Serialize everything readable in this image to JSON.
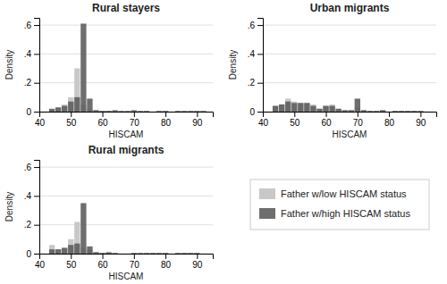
{
  "chart_data": [
    {
      "type": "bar",
      "title": "Rural stayers",
      "xlabel": "HISCAM",
      "ylabel": "Density",
      "x": [
        44,
        46,
        48,
        50,
        52,
        54,
        56,
        58,
        60,
        62,
        64,
        66,
        68,
        70,
        72,
        74,
        76,
        78,
        80,
        82,
        84,
        86,
        88,
        90,
        92
      ],
      "series": [
        {
          "name": "Father w/low HISCAM status",
          "color": "#c8c8c8",
          "values": [
            0.01,
            0.02,
            0.05,
            0.1,
            0.3,
            0.05,
            0.02,
            0.01,
            0.005,
            0.005,
            0.0,
            0.0,
            0.0,
            0.0,
            0.0,
            0.0,
            0.0,
            0.0,
            0.0,
            0.0,
            0.0,
            0.0,
            0.0,
            0.0,
            0.0
          ]
        },
        {
          "name": "Father w/high HISCAM status",
          "color": "#5a5a5a",
          "values": [
            0.02,
            0.03,
            0.04,
            0.07,
            0.1,
            0.61,
            0.09,
            0.01,
            0.005,
            0.005,
            0.01,
            0.005,
            0.005,
            0.01,
            0.005,
            0.005,
            0.0,
            0.005,
            0.005,
            0.0,
            0.005,
            0.005,
            0.005,
            0.005,
            0.005
          ]
        }
      ],
      "xlim": [
        40,
        95
      ],
      "xticks": [
        40,
        50,
        60,
        70,
        80,
        90
      ],
      "ylim": [
        0,
        0.65
      ],
      "yticks": [
        0,
        {
          "value": 0.2,
          "label": ".2"
        },
        {
          "value": 0.4,
          "label": ".4"
        },
        {
          "value": 0.6,
          "label": ".6"
        }
      ],
      "grid": true,
      "legend": "lower right"
    },
    {
      "type": "bar",
      "title": "Urban migrants",
      "xlabel": "HISCAM",
      "ylabel": "Density",
      "x": [
        44,
        46,
        48,
        50,
        52,
        54,
        56,
        58,
        60,
        62,
        64,
        66,
        68,
        70,
        72,
        74,
        76,
        78,
        80,
        82,
        84,
        86,
        88,
        90,
        92
      ],
      "series": [
        {
          "name": "Father w/low HISCAM status",
          "color": "#c8c8c8",
          "values": [
            0.04,
            0.05,
            0.09,
            0.07,
            0.06,
            0.06,
            0.05,
            0.02,
            0.04,
            0.05,
            0.02,
            0.01,
            0.01,
            0.03,
            0.01,
            0.005,
            0.005,
            0.01,
            0.0,
            0.005,
            0.005,
            0.005,
            0.005,
            0.0,
            0.0
          ]
        },
        {
          "name": "Father w/high HISCAM status",
          "color": "#5a5a5a",
          "values": [
            0.04,
            0.05,
            0.07,
            0.06,
            0.06,
            0.06,
            0.04,
            0.02,
            0.04,
            0.04,
            0.02,
            0.01,
            0.01,
            0.09,
            0.01,
            0.005,
            0.005,
            0.01,
            0.0,
            0.005,
            0.005,
            0.005,
            0.005,
            0.005,
            0.0
          ]
        }
      ],
      "xlim": [
        40,
        95
      ],
      "xticks": [
        40,
        50,
        60,
        70,
        80,
        90
      ],
      "ylim": [
        0,
        0.65
      ],
      "yticks": [
        0,
        {
          "value": 0.2,
          "label": ".2"
        },
        {
          "value": 0.4,
          "label": ".4"
        },
        {
          "value": 0.6,
          "label": ".6"
        }
      ],
      "grid": true
    },
    {
      "type": "bar",
      "title": "Rural migrants",
      "xlabel": "HISCAM",
      "ylabel": "Density",
      "x": [
        44,
        46,
        48,
        50,
        52,
        54,
        56,
        58,
        60,
        62,
        64,
        66,
        68,
        70,
        72,
        74,
        76,
        78,
        80,
        82,
        84,
        86,
        88,
        90,
        92
      ],
      "series": [
        {
          "name": "Father w/low HISCAM status",
          "color": "#c8c8c8",
          "values": [
            0.06,
            0.03,
            0.04,
            0.1,
            0.22,
            0.04,
            0.03,
            0.01,
            0.005,
            0.005,
            0.0,
            0.0,
            0.0,
            0.0,
            0.0,
            0.0,
            0.0,
            0.0,
            0.0,
            0.0,
            0.0,
            0.0,
            0.0,
            0.0,
            0.0
          ]
        },
        {
          "name": "Father w/high HISCAM status",
          "color": "#5a5a5a",
          "values": [
            0.03,
            0.03,
            0.04,
            0.06,
            0.07,
            0.35,
            0.05,
            0.01,
            0.005,
            0.01,
            0.005,
            0.0,
            0.0,
            0.005,
            0.005,
            0.005,
            0.005,
            0.005,
            0.005,
            0.0,
            0.005,
            0.005,
            0.005,
            0.005,
            0.0
          ]
        }
      ],
      "xlim": [
        40,
        95
      ],
      "xticks": [
        40,
        50,
        60,
        70,
        80,
        90
      ],
      "ylim": [
        0,
        0.65
      ],
      "yticks": [
        0,
        {
          "value": 0.2,
          "label": ".2"
        },
        {
          "value": 0.4,
          "label": ".4"
        },
        {
          "value": 0.6,
          "label": ".6"
        }
      ],
      "grid": true
    }
  ]
}
